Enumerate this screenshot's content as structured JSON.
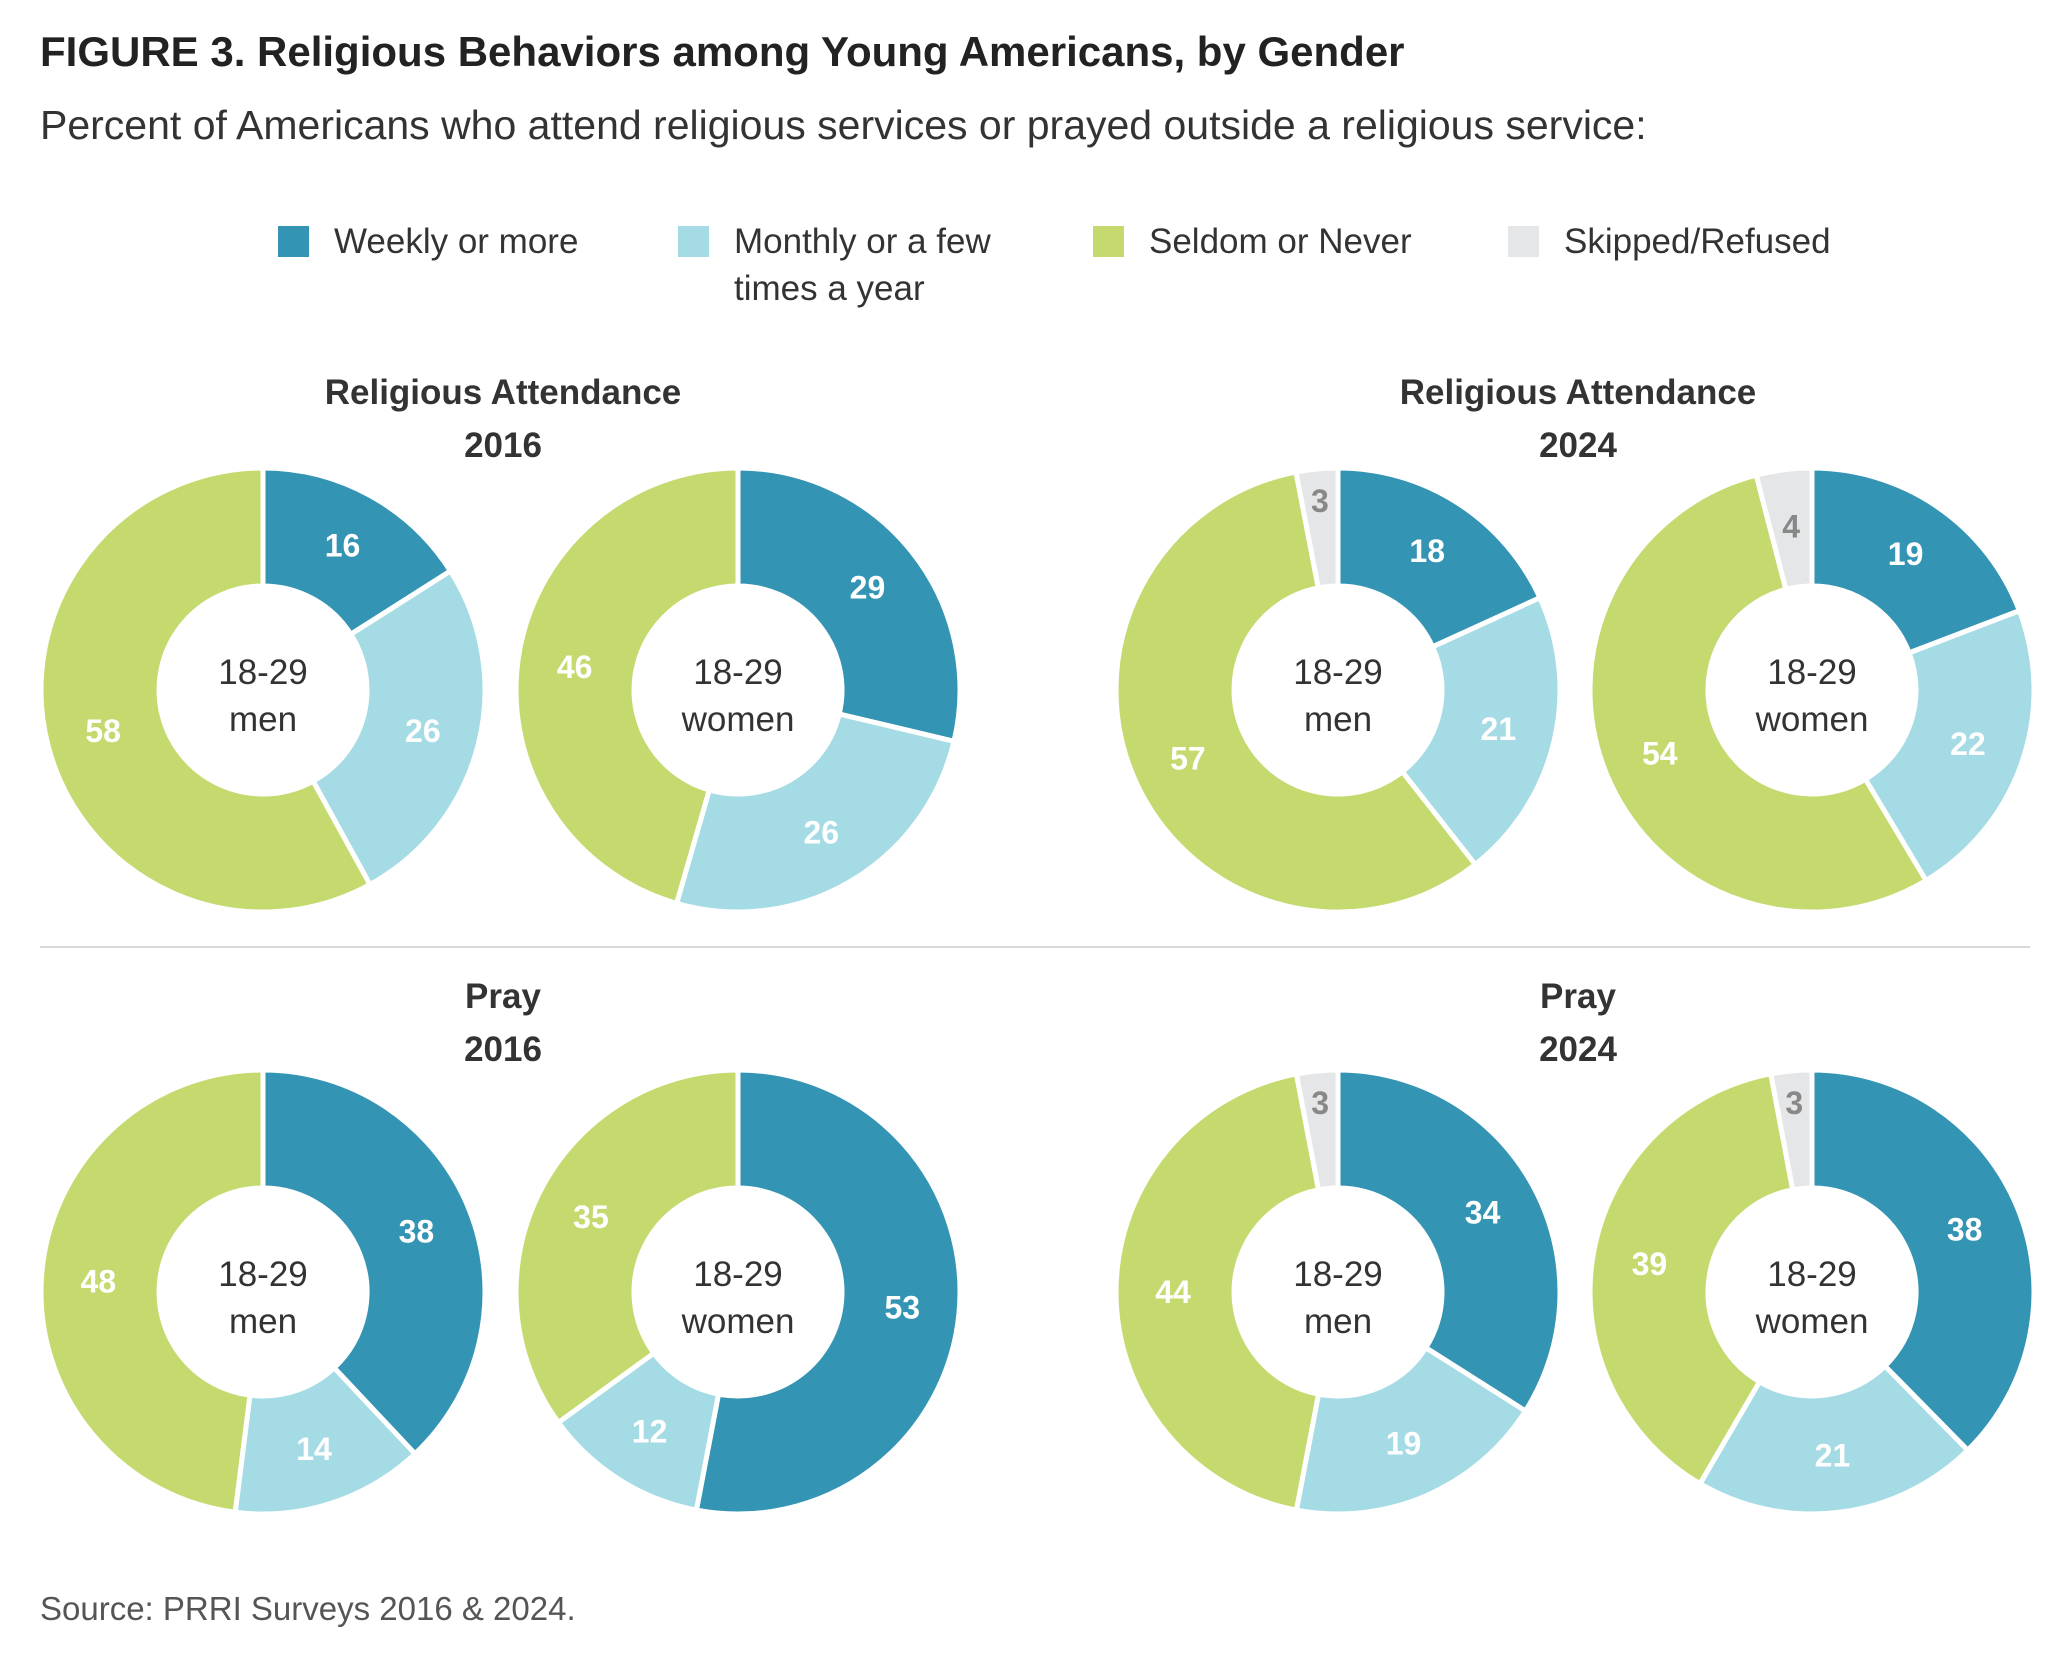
{
  "figure": {
    "title": "FIGURE 3.  Religious Behaviors among Young Americans, by Gender",
    "subtitle": "Percent of Americans who attend religious services or prayed outside a religious service:",
    "source": "Source: PRRI Surveys 2016 & 2024."
  },
  "legend": [
    {
      "label": "Weekly or more",
      "color": "#3494b3"
    },
    {
      "label": "Monthly or a few\ntimes a year",
      "color": "#a5dbe5"
    },
    {
      "label": "Seldom or Never",
      "color": "#c4da6e"
    },
    {
      "label": "Skipped/Refused",
      "color": "#e5e6e7"
    }
  ],
  "chart_data": [
    {
      "type": "pie",
      "style": "donut",
      "panel_title": [
        "Religious Attendance",
        "2016"
      ],
      "center_label": [
        "18-29",
        "men"
      ],
      "categories": [
        "Weekly or more",
        "Monthly or a few times a year",
        "Seldom or Never",
        "Skipped/Refused"
      ],
      "values": [
        16,
        26,
        58,
        0
      ]
    },
    {
      "type": "pie",
      "style": "donut",
      "panel_title": [],
      "center_label": [
        "18-29",
        "women"
      ],
      "categories": [
        "Weekly or more",
        "Monthly or a few times a year",
        "Seldom or Never",
        "Skipped/Refused"
      ],
      "values": [
        29,
        26,
        46,
        0
      ]
    },
    {
      "type": "pie",
      "style": "donut",
      "panel_title": [
        "Religious Attendance",
        "2024"
      ],
      "center_label": [
        "18-29",
        "men"
      ],
      "categories": [
        "Weekly or more",
        "Monthly or a few times a year",
        "Seldom or Never",
        "Skipped/Refused"
      ],
      "values": [
        18,
        21,
        57,
        3
      ]
    },
    {
      "type": "pie",
      "style": "donut",
      "panel_title": [],
      "center_label": [
        "18-29",
        "women"
      ],
      "categories": [
        "Weekly or more",
        "Monthly or a few times a year",
        "Seldom or Never",
        "Skipped/Refused"
      ],
      "values": [
        19,
        22,
        54,
        4
      ]
    },
    {
      "type": "pie",
      "style": "donut",
      "panel_title": [
        "Pray",
        "2016"
      ],
      "center_label": [
        "18-29",
        "men"
      ],
      "categories": [
        "Weekly or more",
        "Monthly or a few times a year",
        "Seldom or Never",
        "Skipped/Refused"
      ],
      "values": [
        38,
        14,
        48,
        0
      ]
    },
    {
      "type": "pie",
      "style": "donut",
      "panel_title": [],
      "center_label": [
        "18-29",
        "women"
      ],
      "categories": [
        "Weekly or more",
        "Monthly or a few times a year",
        "Seldom or Never",
        "Skipped/Refused"
      ],
      "values": [
        53,
        12,
        35,
        0
      ]
    },
    {
      "type": "pie",
      "style": "donut",
      "panel_title": [
        "Pray",
        "2024"
      ],
      "center_label": [
        "18-29",
        "men"
      ],
      "categories": [
        "Weekly or more",
        "Monthly or a few times a year",
        "Seldom or Never",
        "Skipped/Refused"
      ],
      "values": [
        34,
        19,
        44,
        3
      ]
    },
    {
      "type": "pie",
      "style": "donut",
      "panel_title": [],
      "center_label": [
        "18-29",
        "women"
      ],
      "categories": [
        "Weekly or more",
        "Monthly or a few times a year",
        "Seldom or Never",
        "Skipped/Refused"
      ],
      "values": [
        38,
        21,
        39,
        3
      ]
    }
  ]
}
